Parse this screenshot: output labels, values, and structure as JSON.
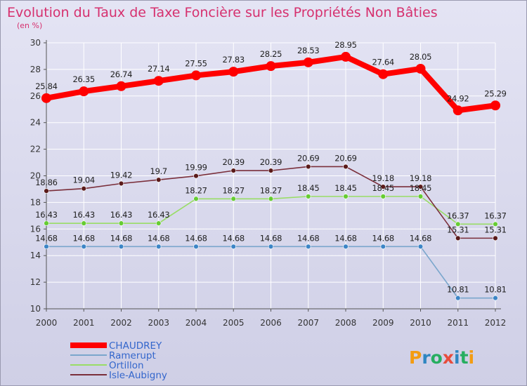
{
  "chart_data": {
    "type": "line",
    "title": "Evolution du Taux de Taxe Foncière sur les Propriétés Non Bâties",
    "subtitle": "(en %)",
    "categories": [
      "2000",
      "2001",
      "2002",
      "2003",
      "2004",
      "2005",
      "2006",
      "2007",
      "2008",
      "2009",
      "2010",
      "2011",
      "2012"
    ],
    "ylim": [
      10,
      30
    ],
    "yticks": [
      10,
      12,
      14,
      16,
      18,
      20,
      22,
      24,
      26,
      28,
      30
    ],
    "grid": true,
    "legend_position": "bottom-left",
    "series": [
      {
        "name": "CHAUDREY",
        "color": "#ff0000",
        "marker_color": "#ff0000",
        "emphasis": true,
        "values": [
          25.84,
          26.35,
          26.74,
          27.14,
          27.55,
          27.83,
          28.25,
          28.53,
          28.95,
          27.64,
          28.05,
          24.92,
          25.29
        ],
        "labels": [
          "25.84",
          "26.35",
          "26.74",
          "27.14",
          "27.55",
          "27.83",
          "28.25",
          "28.53",
          "28.95",
          "27.64",
          "28.05",
          "24.92",
          "25.29"
        ]
      },
      {
        "name": "Ramerupt",
        "color": "#7aa6cc",
        "marker_color": "#3d85c6",
        "emphasis": false,
        "values": [
          14.68,
          14.68,
          14.68,
          14.68,
          14.68,
          14.68,
          14.68,
          14.68,
          14.68,
          14.68,
          14.68,
          10.81,
          10.81
        ],
        "labels": [
          "14.68",
          "14.68",
          "14.68",
          "14.68",
          "14.68",
          "14.68",
          "14.68",
          "14.68",
          "14.68",
          "14.68",
          "14.68",
          "10.81",
          "10.81"
        ]
      },
      {
        "name": "Ortillon",
        "color": "#99dd66",
        "marker_color": "#66cc33",
        "emphasis": false,
        "values": [
          16.43,
          16.43,
          16.43,
          16.43,
          18.27,
          18.27,
          18.27,
          18.45,
          18.45,
          18.45,
          18.45,
          16.37,
          16.37
        ],
        "labels": [
          "16.43",
          "16.43",
          "16.43",
          "16.43",
          "18.27",
          "18.27",
          "18.27",
          "18.45",
          "18.45",
          "18.45",
          "18.45",
          "16.37",
          "16.37"
        ]
      },
      {
        "name": "Isle-Aubigny",
        "color": "#7a2e3a",
        "marker_color": "#5a1a1a",
        "emphasis": false,
        "values": [
          18.86,
          19.04,
          19.42,
          19.7,
          19.99,
          20.39,
          20.39,
          20.69,
          20.69,
          19.18,
          19.18,
          15.31,
          15.31
        ],
        "labels": [
          "18.86",
          "19.04",
          "19.42",
          "19.7",
          "19.99",
          "20.39",
          "20.39",
          "20.69",
          "20.69",
          "19.18",
          "19.18",
          "15.31",
          "15.31"
        ]
      }
    ]
  },
  "logo": {
    "text": "Proxiti"
  },
  "colors": {
    "background": "#dcdcf0",
    "title": "#d6306e",
    "subtitle": "#d6306e",
    "grid": "#ffffff",
    "axis": "#555555",
    "legend_text": "#3366cc",
    "logo_letters": [
      "#f39c12",
      "#2e86c1",
      "#27ae60",
      "#e74c3c",
      "#2e86c1",
      "#27ae60",
      "#f39c12"
    ]
  }
}
